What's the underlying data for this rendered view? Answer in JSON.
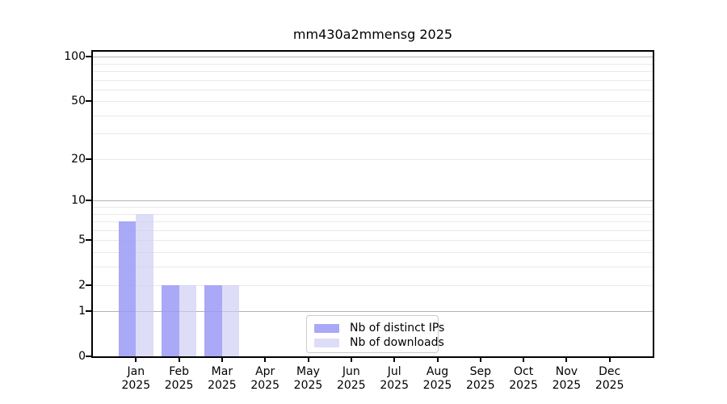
{
  "title": "mm430a2mmensg 2025",
  "chart_data": {
    "type": "bar",
    "title": "mm430a2mmensg 2025",
    "months": [
      "Jan",
      "Feb",
      "Mar",
      "Apr",
      "May",
      "Jun",
      "Jul",
      "Aug",
      "Sep",
      "Oct",
      "Nov",
      "Dec"
    ],
    "year": "2025",
    "categories": [
      "Jan 2025",
      "Feb 2025",
      "Mar 2025",
      "Apr 2025",
      "May 2025",
      "Jun 2025",
      "Jul 2025",
      "Aug 2025",
      "Sep 2025",
      "Oct 2025",
      "Nov 2025",
      "Dec 2025"
    ],
    "series": [
      {
        "name": "Nb of distinct IPs",
        "color": "#9999f5",
        "alpha": 0.84,
        "values": [
          7,
          2,
          2,
          0,
          0,
          0,
          0,
          0,
          0,
          0,
          0,
          0
        ]
      },
      {
        "name": "Nb of downloads",
        "color": "#ccccf5",
        "alpha": 0.66,
        "values": [
          8,
          2,
          2,
          0,
          0,
          0,
          0,
          0,
          0,
          0,
          0,
          0
        ]
      }
    ],
    "y_axis": {
      "scale": "log1p",
      "ylim": [
        0,
        112
      ],
      "tick_values": [
        0,
        1,
        2,
        5,
        10,
        20,
        50,
        100
      ],
      "major_gridlines": [
        1,
        10,
        100
      ],
      "minor_gridlines": [
        2,
        3,
        4,
        5,
        6,
        7,
        8,
        9,
        20,
        30,
        40,
        50,
        60,
        70,
        80,
        90
      ]
    },
    "legend": {
      "position": "lower center"
    },
    "colors": {
      "spine": "#000000",
      "major_grid": "#b3b3b3",
      "minor_grid": "#e9e9e9",
      "background": "#ffffff",
      "text": "#000000"
    }
  }
}
